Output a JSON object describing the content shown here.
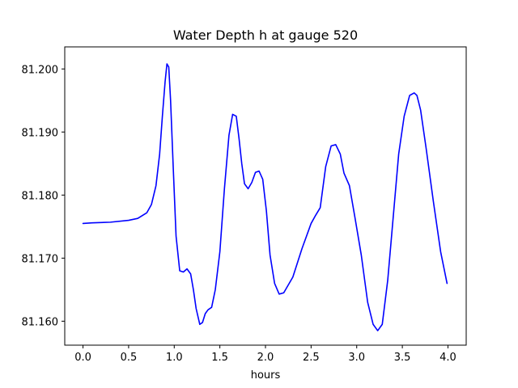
{
  "chart_data": {
    "type": "line",
    "title": "Water Depth h at gauge 520",
    "xlabel": "hours",
    "ylabel": "",
    "xlim": [
      -0.2,
      4.2
    ],
    "ylim": [
      81.1562,
      81.2035
    ],
    "x_ticks": [
      0.0,
      0.5,
      1.0,
      1.5,
      2.0,
      2.5,
      3.0,
      3.5,
      4.0
    ],
    "x_tick_labels": [
      "0.0",
      "0.5",
      "1.0",
      "1.5",
      "2.0",
      "2.5",
      "3.0",
      "3.5",
      "4.0"
    ],
    "y_ticks": [
      81.16,
      81.17,
      81.18,
      81.19,
      81.2
    ],
    "y_tick_labels": [
      "81.160",
      "81.170",
      "81.180",
      "81.190",
      "81.200"
    ],
    "grid": false,
    "series": [
      {
        "color": "#0000ff",
        "x": [
          0.0,
          0.1,
          0.3,
          0.5,
          0.6,
          0.7,
          0.75,
          0.8,
          0.84,
          0.87,
          0.9,
          0.92,
          0.94,
          0.96,
          0.99,
          1.02,
          1.06,
          1.1,
          1.14,
          1.18,
          1.21,
          1.24,
          1.28,
          1.31,
          1.34,
          1.37,
          1.41,
          1.45,
          1.5,
          1.55,
          1.6,
          1.64,
          1.68,
          1.71,
          1.74,
          1.77,
          1.81,
          1.85,
          1.89,
          1.93,
          1.97,
          2.01,
          2.05,
          2.1,
          2.15,
          2.2,
          2.3,
          2.4,
          2.5,
          2.55,
          2.6,
          2.66,
          2.72,
          2.77,
          2.82,
          2.86,
          2.92,
          2.98,
          3.05,
          3.12,
          3.18,
          3.23,
          3.28,
          3.34,
          3.4,
          3.46,
          3.52,
          3.58,
          3.63,
          3.66,
          3.7,
          3.76,
          3.84,
          3.92,
          3.99
        ],
        "y": [
          81.1755,
          81.1756,
          81.1757,
          81.176,
          81.1763,
          81.1772,
          81.1785,
          81.1815,
          81.1865,
          81.1925,
          81.198,
          81.2008,
          81.2003,
          81.195,
          81.184,
          81.1735,
          81.168,
          81.1678,
          81.1683,
          81.1675,
          81.165,
          81.162,
          81.1595,
          81.1598,
          81.1612,
          81.1618,
          81.1622,
          81.165,
          81.171,
          81.181,
          81.1895,
          81.1928,
          81.1925,
          81.189,
          81.185,
          81.1818,
          81.181,
          81.182,
          81.1836,
          81.1838,
          81.1825,
          81.1775,
          81.1705,
          81.166,
          81.1643,
          81.1645,
          81.167,
          81.1715,
          81.1755,
          81.1768,
          81.178,
          81.1845,
          81.1878,
          81.188,
          81.1865,
          81.1835,
          81.1815,
          81.1765,
          81.1705,
          81.163,
          81.1595,
          81.1585,
          81.1595,
          81.1665,
          81.1765,
          81.1865,
          81.1925,
          81.1958,
          81.1962,
          81.1958,
          81.1935,
          81.1875,
          81.179,
          81.171,
          81.166
        ]
      }
    ]
  }
}
